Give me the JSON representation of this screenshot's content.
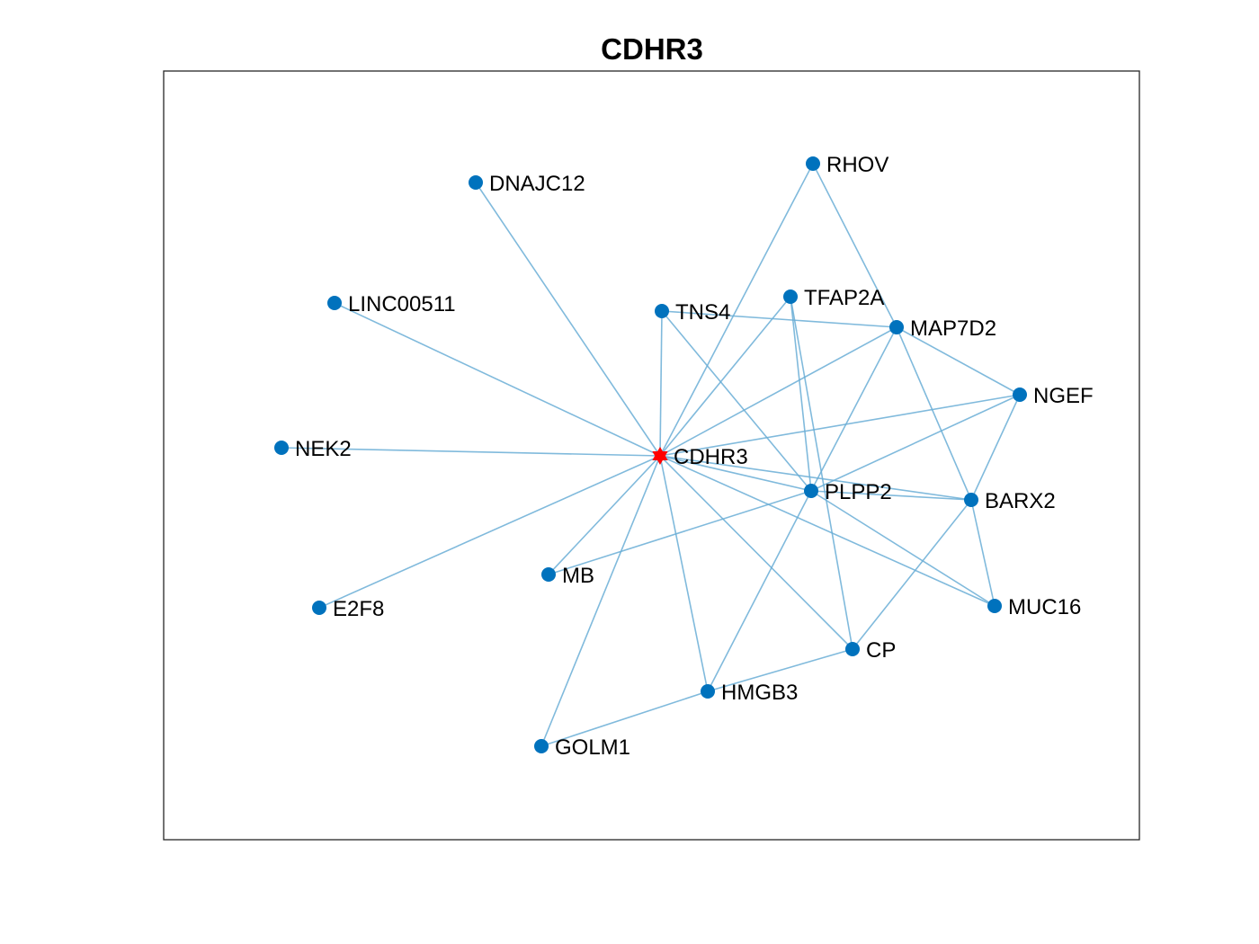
{
  "title": "CDHR3",
  "colors": {
    "node": "#0072BD",
    "center": "#FF0000",
    "edge": "#6BAED6",
    "frame": "#262626",
    "background": "#FFFFFF"
  },
  "graph": {
    "center": "CDHR3",
    "nodes": [
      {
        "id": "CDHR3",
        "label": "CDHR3",
        "marker": "hexagram"
      },
      {
        "id": "DNAJC12",
        "label": "DNAJC12",
        "marker": "circle"
      },
      {
        "id": "RHOV",
        "label": "RHOV",
        "marker": "circle"
      },
      {
        "id": "LINC00511",
        "label": "LINC00511",
        "marker": "circle"
      },
      {
        "id": "TNS4",
        "label": "TNS4",
        "marker": "circle"
      },
      {
        "id": "TFAP2A",
        "label": "TFAP2A",
        "marker": "circle"
      },
      {
        "id": "MAP7D2",
        "label": "MAP7D2",
        "marker": "circle"
      },
      {
        "id": "NGEF",
        "label": "NGEF",
        "marker": "circle"
      },
      {
        "id": "NEK2",
        "label": "NEK2",
        "marker": "circle"
      },
      {
        "id": "PLPP2",
        "label": "PLPP2",
        "marker": "circle"
      },
      {
        "id": "BARX2",
        "label": "BARX2",
        "marker": "circle"
      },
      {
        "id": "MB",
        "label": "MB",
        "marker": "circle"
      },
      {
        "id": "E2F8",
        "label": "E2F8",
        "marker": "circle"
      },
      {
        "id": "MUC16",
        "label": "MUC16",
        "marker": "circle"
      },
      {
        "id": "CP",
        "label": "CP",
        "marker": "circle"
      },
      {
        "id": "HMGB3",
        "label": "HMGB3",
        "marker": "circle"
      },
      {
        "id": "GOLM1",
        "label": "GOLM1",
        "marker": "circle"
      }
    ],
    "edges": [
      [
        "CDHR3",
        "DNAJC12"
      ],
      [
        "CDHR3",
        "LINC00511"
      ],
      [
        "CDHR3",
        "NEK2"
      ],
      [
        "CDHR3",
        "E2F8"
      ],
      [
        "CDHR3",
        "MB"
      ],
      [
        "CDHR3",
        "GOLM1"
      ],
      [
        "CDHR3",
        "HMGB3"
      ],
      [
        "CDHR3",
        "CP"
      ],
      [
        "CDHR3",
        "MUC16"
      ],
      [
        "CDHR3",
        "BARX2"
      ],
      [
        "CDHR3",
        "PLPP2"
      ],
      [
        "CDHR3",
        "NGEF"
      ],
      [
        "CDHR3",
        "MAP7D2"
      ],
      [
        "CDHR3",
        "TFAP2A"
      ],
      [
        "CDHR3",
        "TNS4"
      ],
      [
        "CDHR3",
        "RHOV"
      ],
      [
        "RHOV",
        "MAP7D2"
      ],
      [
        "TNS4",
        "MAP7D2"
      ],
      [
        "TNS4",
        "PLPP2"
      ],
      [
        "TFAP2A",
        "PLPP2"
      ],
      [
        "TFAP2A",
        "CP"
      ],
      [
        "MAP7D2",
        "NGEF"
      ],
      [
        "MAP7D2",
        "PLPP2"
      ],
      [
        "MAP7D2",
        "BARX2"
      ],
      [
        "NGEF",
        "PLPP2"
      ],
      [
        "NGEF",
        "BARX2"
      ],
      [
        "PLPP2",
        "BARX2"
      ],
      [
        "PLPP2",
        "MB"
      ],
      [
        "PLPP2",
        "HMGB3"
      ],
      [
        "PLPP2",
        "MUC16"
      ],
      [
        "BARX2",
        "MUC16"
      ],
      [
        "BARX2",
        "CP"
      ],
      [
        "CP",
        "HMGB3"
      ],
      [
        "HMGB3",
        "GOLM1"
      ]
    ]
  }
}
